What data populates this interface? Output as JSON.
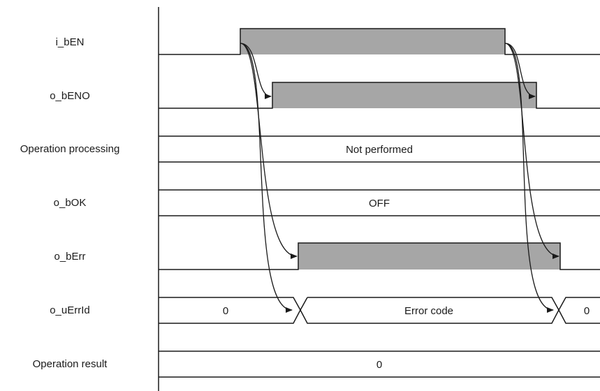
{
  "signals": {
    "i_bEN": "i_bEN",
    "o_bENO": "o_bENO",
    "operation_processing": "Operation processing",
    "o_bOK": "o_bOK",
    "o_bErr": "o_bErr",
    "o_uErrId": "o_uErrId",
    "operation_result": "Operation result"
  },
  "values": {
    "operation_processing": "Not performed",
    "o_bOK": "OFF",
    "o_uErrId_before": "0",
    "o_uErrId_during": "Error code",
    "o_uErrId_after": "0",
    "operation_result": "0"
  },
  "colors": {
    "high_fill": "#a6a6a6",
    "line": "#1a1a1a"
  }
}
